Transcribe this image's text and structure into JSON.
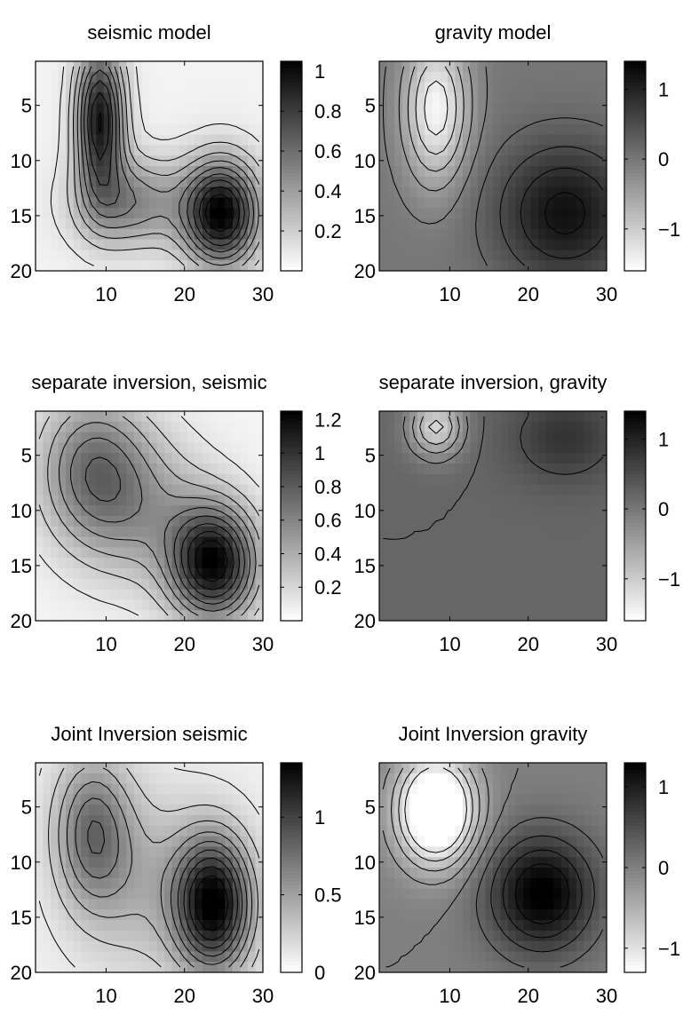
{
  "chart_data": [
    {
      "type": "heatmap",
      "title": "seismic model",
      "xlim": [
        1,
        30
      ],
      "ylim": [
        1,
        20
      ],
      "y_reversed": true,
      "xticks": [
        "10",
        "20",
        "30"
      ],
      "yticks": [
        "5",
        "10",
        "15",
        "20"
      ],
      "clim": [
        0,
        1.05
      ],
      "colorbar": {
        "ticks": [
          0.2,
          0.4,
          0.6,
          0.8,
          1
        ],
        "labels": [
          "0.2",
          "0.4",
          "0.6",
          "0.8",
          "1"
        ]
      },
      "colormap": "gray reversed (white = low, black = high)",
      "contours": true,
      "features": [
        {
          "kind": "max",
          "x": 9,
          "y": 6,
          "value": 0.9,
          "sx": 2.2,
          "sy": 5.0
        },
        {
          "kind": "max",
          "x": 25,
          "y": 15,
          "value": 1.0,
          "sx": 3.5,
          "sy": 3.5
        },
        {
          "kind": "max",
          "x": 13,
          "y": 14,
          "value": 0.45,
          "sx": 5,
          "sy": 3
        }
      ],
      "base": 0.05
    },
    {
      "type": "heatmap",
      "title": "gravity model",
      "xlim": [
        1,
        30
      ],
      "ylim": [
        1,
        20
      ],
      "y_reversed": true,
      "xticks": [
        "10",
        "20",
        "30"
      ],
      "yticks": [
        "5",
        "10",
        "15",
        "20"
      ],
      "clim": [
        -1.6,
        1.4
      ],
      "colorbar": {
        "ticks": [
          -1,
          0,
          1
        ],
        "labels": [
          "−1",
          "0",
          "1"
        ]
      },
      "colormap": "gray reversed (white = low, black = high)",
      "contours": true,
      "features": [
        {
          "kind": "min",
          "x": 8,
          "y": 5,
          "value": -1.5,
          "sx": 3.0,
          "sy": 5.0
        },
        {
          "kind": "max",
          "x": 25,
          "y": 15,
          "value": 1.2,
          "sx": 6.5,
          "sy": 4.8
        }
      ],
      "base": 0.0
    },
    {
      "type": "heatmap",
      "title": "separate inversion, seismic",
      "xlim": [
        1,
        30
      ],
      "ylim": [
        1,
        20
      ],
      "y_reversed": true,
      "xticks": [
        "10",
        "20",
        "30"
      ],
      "yticks": [
        "5",
        "10",
        "15",
        "20"
      ],
      "clim": [
        0,
        1.25
      ],
      "colorbar": {
        "ticks": [
          0.2,
          0.4,
          0.6,
          0.8,
          1,
          1.2
        ],
        "labels": [
          "0.2",
          "0.4",
          "0.6",
          "0.8",
          "1",
          "1.2"
        ]
      },
      "colormap": "gray reversed (white = low, black = high)",
      "contours": true,
      "features": [
        {
          "kind": "max",
          "x": 8,
          "y": 6,
          "value": 0.6,
          "sx": 5.0,
          "sy": 5.0
        },
        {
          "kind": "max",
          "x": 24,
          "y": 15,
          "value": 1.15,
          "sx": 4.0,
          "sy": 3.8
        },
        {
          "kind": "max",
          "x": 15,
          "y": 10,
          "value": 0.35,
          "sx": 6,
          "sy": 5
        }
      ],
      "base": 0.05
    },
    {
      "type": "heatmap",
      "title": "separate inversion, gravity",
      "xlim": [
        1,
        30
      ],
      "ylim": [
        1,
        20
      ],
      "y_reversed": true,
      "xticks": [
        "10",
        "20",
        "30"
      ],
      "yticks": [
        "5",
        "10",
        "15",
        "20"
      ],
      "clim": [
        -1.6,
        1.4
      ],
      "colorbar": {
        "ticks": [
          -1,
          0,
          1
        ],
        "labels": [
          "−1",
          "0",
          "1"
        ]
      },
      "colormap": "gray reversed (white = low, black = high)",
      "contours": true,
      "features": [
        {
          "kind": "min",
          "x": 8,
          "y": 2,
          "value": -1.3,
          "sx": 2.5,
          "sy": 2.0
        },
        {
          "kind": "max",
          "x": 25,
          "y": 3,
          "value": 0.6,
          "sx": 5.0,
          "sy": 3.0
        }
      ],
      "base": 0.2
    },
    {
      "type": "heatmap",
      "title": "Joint Inversion seismic",
      "xlim": [
        1,
        30
      ],
      "ylim": [
        1,
        20
      ],
      "y_reversed": true,
      "xticks": [
        "10",
        "20",
        "30"
      ],
      "yticks": [
        "5",
        "10",
        "15",
        "20"
      ],
      "clim": [
        0,
        1.35
      ],
      "colorbar": {
        "ticks": [
          0,
          0.5,
          1
        ],
        "labels": [
          "0",
          "0.5",
          "1"
        ]
      },
      "colormap": "gray reversed (white = low, black = high)",
      "contours": true,
      "features": [
        {
          "kind": "max",
          "x": 8,
          "y": 7,
          "value": 0.65,
          "sx": 3.5,
          "sy": 5.0
        },
        {
          "kind": "max",
          "x": 24,
          "y": 14,
          "value": 1.25,
          "sx": 3.5,
          "sy": 4.5
        },
        {
          "kind": "max",
          "x": 15,
          "y": 12,
          "value": 0.3,
          "sx": 6,
          "sy": 6
        }
      ],
      "base": 0.08
    },
    {
      "type": "heatmap",
      "title": "Joint Inversion gravity",
      "xlim": [
        1,
        30
      ],
      "ylim": [
        1,
        20
      ],
      "y_reversed": true,
      "xticks": [
        "10",
        "20",
        "30"
      ],
      "yticks": [
        "5",
        "10",
        "15",
        "20"
      ],
      "clim": [
        -1.3,
        1.3
      ],
      "colorbar": {
        "ticks": [
          -1,
          0,
          1
        ],
        "labels": [
          "−1",
          "0",
          "1"
        ]
      },
      "colormap": "gray reversed (white = low, black = high)",
      "contours": true,
      "features": [
        {
          "kind": "min",
          "x": 8,
          "y": 5,
          "value": -2.0,
          "sx": 3.6,
          "sy": 3.6
        },
        {
          "kind": "max",
          "x": 22,
          "y": 13,
          "value": 1.35,
          "sx": 5.0,
          "sy": 4.0
        }
      ],
      "base": 0.0
    }
  ]
}
